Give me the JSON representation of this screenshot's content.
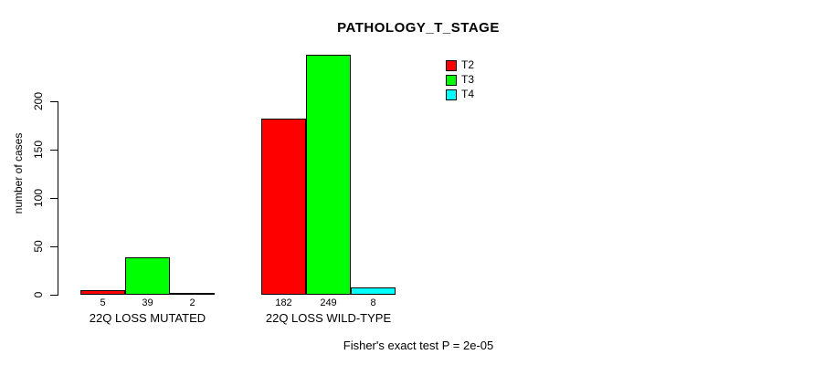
{
  "chart_data": {
    "type": "bar",
    "title": "PATHOLOGY_T_STAGE",
    "ylabel": "number of cases",
    "xlabel": "",
    "categories": [
      "22Q LOSS MUTATED",
      "22Q LOSS WILD-TYPE"
    ],
    "series": [
      {
        "name": "T2",
        "color": "#FF0000",
        "values": [
          5,
          182
        ]
      },
      {
        "name": "T3",
        "color": "#00FF00",
        "values": [
          39,
          249
        ]
      },
      {
        "name": "T4",
        "color": "#00FFFF",
        "values": [
          2,
          8
        ]
      }
    ],
    "yticks": [
      0,
      50,
      100,
      150,
      200
    ],
    "ylim": [
      0,
      250
    ],
    "grid": false,
    "legend_position": "top-right",
    "legend_entries": [
      "T2",
      "T3",
      "T4"
    ],
    "bar_value_labels_shown": true,
    "annotation": "Fisher's exact test P = 2e-05"
  },
  "colors": {
    "t2": "#FF0000",
    "t3": "#00FF00",
    "t4": "#00FFFF",
    "axis": "#000000",
    "background": "#FFFFFF"
  }
}
